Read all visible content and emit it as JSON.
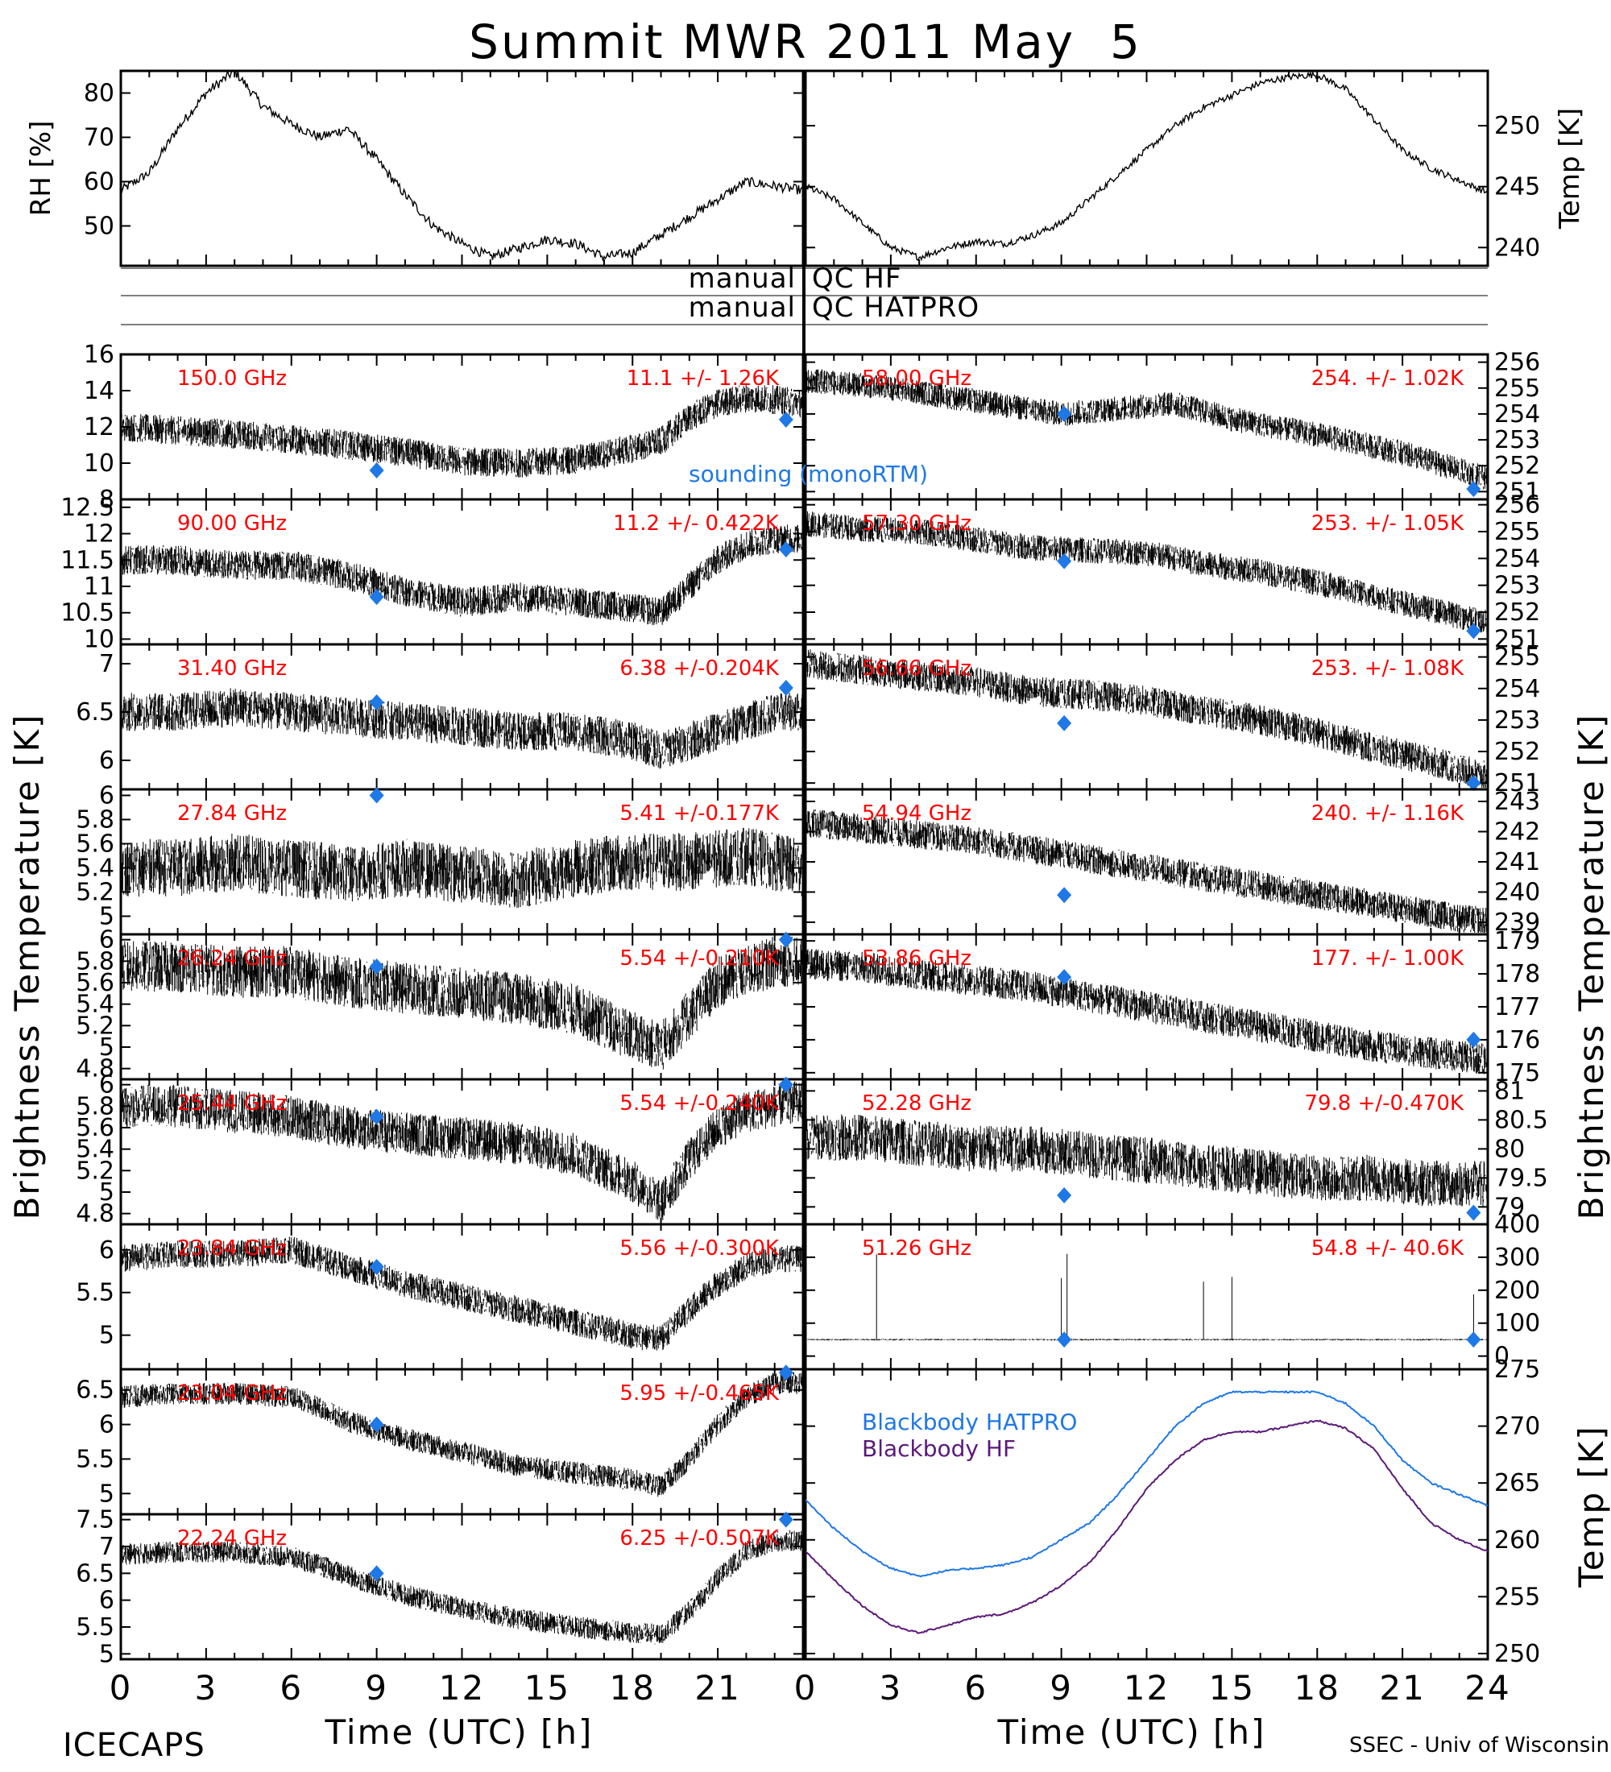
{
  "figure": {
    "title": "Summit MWR 2011 May  5",
    "footer_left": "ICECAPS",
    "footer_right": "SSEC - Univ of Wisconsin",
    "left_ylabel": "Brightness Temperature [K]",
    "right_ylabel": "Brightness Temperature [K]",
    "xlabel_left": "Time (UTC) [h]",
    "xlabel_right": "Time (UTC) [h]",
    "qc_rows": [
      {
        "left": "manual",
        "right": "QC HF"
      },
      {
        "left": "manual",
        "right": "QC HATPRO"
      }
    ],
    "sounding_label": "sounding (monoRTM)",
    "blackbody_labels": [
      "Blackbody HATPRO",
      "Blackbody HF"
    ],
    "colors": {
      "sounding": "#1e78e6",
      "blackbody_hatpro": "#1e78e6",
      "blackbody_hf": "#5a1a7a",
      "stat_text": "#ff0000"
    }
  },
  "chart_data": [
    {
      "type": "line",
      "id": "rh",
      "ylabel": "RH [%]",
      "x_range": [
        0,
        24
      ],
      "ylim": [
        41,
        85
      ],
      "yticks": [
        50,
        60,
        70,
        80
      ],
      "x": [
        0,
        1,
        2,
        3,
        4,
        5,
        6,
        7,
        8,
        9,
        10,
        11,
        12,
        13,
        14,
        15,
        16,
        17,
        18,
        19,
        20,
        21,
        22,
        23,
        24
      ],
      "y": [
        58,
        62,
        72,
        80,
        85,
        77,
        73,
        70,
        72,
        65,
        57,
        50,
        46,
        43,
        45,
        47,
        46,
        43,
        44,
        48,
        52,
        56,
        60,
        59,
        58
      ]
    },
    {
      "type": "line",
      "id": "temp",
      "ylabel": "Temp [K]",
      "x_range": [
        0,
        24
      ],
      "ylim": [
        238.5,
        254.5
      ],
      "yticks": [
        240,
        245,
        250
      ],
      "x": [
        0,
        1,
        2,
        3,
        4,
        5,
        6,
        7,
        8,
        9,
        10,
        11,
        12,
        13,
        14,
        15,
        16,
        17,
        18,
        19,
        20,
        21,
        22,
        23,
        24
      ],
      "y": [
        245,
        244,
        242,
        240,
        239.2,
        240,
        240.5,
        240.3,
        241,
        242,
        244,
        246,
        248,
        250,
        251.5,
        252.5,
        253.5,
        254,
        254.2,
        253,
        250.5,
        248,
        246.5,
        245.5,
        244.5
      ]
    },
    {
      "type": "scatter",
      "column": "left",
      "channel": "150.0 GHz",
      "stat": "11.1 +/-  1.26K",
      "ylim": [
        8,
        16
      ],
      "yticks": [
        8,
        10,
        12,
        14,
        16
      ],
      "x": [
        0,
        2,
        4,
        6,
        8,
        10,
        12,
        14,
        16,
        18,
        19,
        20,
        21,
        22,
        23,
        24
      ],
      "y": [
        12,
        11.8,
        11.6,
        11.3,
        11,
        10.6,
        10.1,
        10,
        10.2,
        10.8,
        11.2,
        12.5,
        13.3,
        13.6,
        13.5,
        13.3
      ],
      "noise": 1.0,
      "sounding": [
        [
          9,
          9.6
        ],
        [
          23.4,
          12.4
        ]
      ]
    },
    {
      "type": "scatter",
      "column": "left",
      "channel": "90.00 GHz",
      "stat": "11.2 +/- 0.422K",
      "ylim": [
        9.9,
        12.65
      ],
      "yticks": [
        10.0,
        10.5,
        11.0,
        11.5,
        12.0,
        12.5
      ],
      "x": [
        0,
        2,
        4,
        6,
        8,
        10,
        12,
        14,
        16,
        18,
        19,
        20,
        21,
        22,
        23,
        24
      ],
      "y": [
        11.5,
        11.5,
        11.4,
        11.4,
        11.2,
        10.9,
        10.7,
        10.8,
        10.7,
        10.6,
        10.5,
        11,
        11.5,
        11.8,
        11.9,
        11.9
      ],
      "noise": 0.35,
      "sounding": [
        [
          9,
          10.8
        ],
        [
          23.4,
          11.7
        ]
      ]
    },
    {
      "type": "scatter",
      "column": "left",
      "channel": "31.40 GHz",
      "stat": "6.38 +/-0.204K",
      "ylim": [
        5.7,
        7.2
      ],
      "yticks": [
        6.0,
        6.5,
        7.0
      ],
      "x": [
        0,
        2,
        4,
        6,
        8,
        10,
        12,
        14,
        16,
        18,
        19,
        20,
        21,
        22,
        23,
        24
      ],
      "y": [
        6.5,
        6.5,
        6.55,
        6.5,
        6.45,
        6.4,
        6.35,
        6.3,
        6.3,
        6.2,
        6.1,
        6.2,
        6.3,
        6.4,
        6.5,
        6.5
      ],
      "noise": 0.25,
      "sounding": [
        [
          9,
          6.6
        ],
        [
          23.4,
          6.75
        ]
      ]
    },
    {
      "type": "scatter",
      "column": "left",
      "channel": "27.84 GHz",
      "stat": "5.41 +/-0.177K",
      "ylim": [
        4.85,
        6.05
      ],
      "yticks": [
        5.0,
        5.2,
        5.4,
        5.6,
        5.8,
        6.0
      ],
      "x": [
        0,
        2,
        4,
        6,
        8,
        10,
        12,
        14,
        16,
        18,
        20,
        22,
        24
      ],
      "y": [
        5.4,
        5.4,
        5.45,
        5.4,
        5.35,
        5.4,
        5.35,
        5.3,
        5.4,
        5.45,
        5.45,
        5.5,
        5.4
      ],
      "noise": 0.3,
      "sounding": [
        [
          9,
          6.0
        ]
      ]
    },
    {
      "type": "scatter",
      "column": "left",
      "channel": "26.24 GHz",
      "stat": "5.54 +/-0.210K",
      "ylim": [
        4.7,
        6.05
      ],
      "yticks": [
        4.8,
        5.0,
        5.2,
        5.4,
        5.6,
        5.8,
        6.0
      ],
      "x": [
        0,
        2,
        4,
        6,
        8,
        10,
        12,
        14,
        16,
        18,
        19,
        20,
        21,
        22,
        23,
        24
      ],
      "y": [
        5.75,
        5.75,
        5.7,
        5.7,
        5.6,
        5.55,
        5.5,
        5.45,
        5.35,
        5.1,
        5.0,
        5.3,
        5.6,
        5.7,
        5.8,
        5.8
      ],
      "noise": 0.3,
      "sounding": [
        [
          9,
          5.75
        ],
        [
          23.4,
          6.0
        ]
      ]
    },
    {
      "type": "scatter",
      "column": "left",
      "channel": "25.44 GHz",
      "stat": "5.54 +/-0.240K",
      "ylim": [
        4.7,
        6.05
      ],
      "yticks": [
        4.8,
        5.0,
        5.2,
        5.4,
        5.6,
        5.8,
        6.0
      ],
      "x": [
        0,
        2,
        4,
        6,
        8,
        10,
        12,
        14,
        16,
        18,
        19,
        20,
        21,
        22,
        23,
        24
      ],
      "y": [
        5.8,
        5.8,
        5.75,
        5.7,
        5.6,
        5.55,
        5.5,
        5.45,
        5.35,
        5.1,
        4.9,
        5.3,
        5.6,
        5.75,
        5.8,
        5.85
      ],
      "noise": 0.25,
      "sounding": [
        [
          9,
          5.7
        ],
        [
          23.4,
          6.0
        ]
      ]
    },
    {
      "type": "scatter",
      "column": "left",
      "channel": "23.84 GHz",
      "stat": "5.56 +/-0.300K",
      "ylim": [
        4.6,
        6.3
      ],
      "yticks": [
        5.0,
        5.5,
        6.0
      ],
      "x": [
        0,
        2,
        4,
        6,
        7,
        8,
        10,
        12,
        14,
        16,
        18,
        19,
        20,
        21,
        22,
        23,
        24
      ],
      "y": [
        5.9,
        5.95,
        5.95,
        6.0,
        5.9,
        5.8,
        5.6,
        5.45,
        5.3,
        5.15,
        5.0,
        4.95,
        5.3,
        5.6,
        5.8,
        5.9,
        5.9
      ],
      "noise": 0.2,
      "sounding": [
        [
          9,
          5.8
        ]
      ]
    },
    {
      "type": "scatter",
      "column": "left",
      "channel": "23.04 GHz",
      "stat": "5.95 +/-0.465K",
      "ylim": [
        4.7,
        6.8
      ],
      "yticks": [
        5.0,
        5.5,
        6.0,
        6.5
      ],
      "x": [
        0,
        2,
        4,
        6,
        7,
        8,
        10,
        12,
        14,
        16,
        18,
        19,
        20,
        21,
        22,
        23,
        24
      ],
      "y": [
        6.4,
        6.45,
        6.45,
        6.4,
        6.25,
        6.05,
        5.8,
        5.6,
        5.4,
        5.3,
        5.2,
        5.1,
        5.5,
        6.0,
        6.4,
        6.6,
        6.6
      ],
      "noise": 0.2,
      "sounding": [
        [
          9,
          6.0
        ],
        [
          23.4,
          6.75
        ]
      ]
    },
    {
      "type": "scatter",
      "column": "left",
      "channel": "22.24 GHz",
      "stat": "6.25 +/-0.507K",
      "ylim": [
        4.9,
        7.6
      ],
      "yticks": [
        5.0,
        5.5,
        6.0,
        6.5,
        7.0,
        7.5
      ],
      "x": [
        0,
        2,
        4,
        6,
        7,
        8,
        10,
        12,
        14,
        16,
        18,
        19,
        20,
        21,
        22,
        23,
        24
      ],
      "y": [
        6.85,
        6.9,
        6.9,
        6.8,
        6.65,
        6.45,
        6.1,
        5.85,
        5.65,
        5.5,
        5.4,
        5.35,
        5.8,
        6.4,
        6.9,
        7.1,
        7.1
      ],
      "noise": 0.25,
      "sounding": [
        [
          9,
          6.5
        ],
        [
          23.4,
          7.5
        ]
      ]
    },
    {
      "type": "scatter",
      "column": "right",
      "channel": "58.00 GHz",
      "stat": "254. +/- 1.02K",
      "ylim": [
        250.7,
        256.3
      ],
      "yticks": [
        251,
        252,
        253,
        254,
        255,
        256
      ],
      "x": [
        0,
        1,
        3,
        6,
        9,
        11,
        13,
        15,
        18,
        21,
        24
      ],
      "y": [
        255.3,
        255.2,
        255,
        254.5,
        254,
        254.2,
        254.4,
        253.8,
        253.2,
        252.5,
        251.5
      ],
      "noise": 0.6,
      "sounding": [
        [
          9.1,
          254.0
        ],
        [
          23.5,
          251.1
        ]
      ]
    },
    {
      "type": "scatter",
      "column": "right",
      "channel": "57.30 GHz",
      "stat": "253. +/- 1.05K",
      "ylim": [
        250.8,
        256.2
      ],
      "yticks": [
        251,
        252,
        253,
        254,
        255,
        256
      ],
      "x": [
        0,
        2,
        4,
        6,
        8,
        10,
        12,
        14,
        16,
        18,
        20,
        22,
        24
      ],
      "y": [
        255.3,
        255.1,
        255,
        254.7,
        254.4,
        254.3,
        254.2,
        253.8,
        253.5,
        253.1,
        252.6,
        252.1,
        251.6
      ],
      "noise": 0.6,
      "sounding": [
        [
          9.1,
          253.9
        ],
        [
          23.5,
          251.3
        ]
      ]
    },
    {
      "type": "scatter",
      "column": "right",
      "channel": "56.66 GHz",
      "stat": "253. +/- 1.08K",
      "ylim": [
        250.8,
        255.4
      ],
      "yticks": [
        251,
        252,
        253,
        254,
        255
      ],
      "x": [
        0,
        2,
        4,
        6,
        8,
        10,
        12,
        14,
        16,
        18,
        20,
        22,
        24
      ],
      "y": [
        254.8,
        254.6,
        254.4,
        254.2,
        253.9,
        253.8,
        253.6,
        253.3,
        253.0,
        252.6,
        252.1,
        251.7,
        251.2
      ],
      "noise": 0.6,
      "sounding": [
        [
          9.1,
          252.9
        ],
        [
          23.5,
          251.0
        ]
      ]
    },
    {
      "type": "scatter",
      "column": "right",
      "channel": "54.94 GHz",
      "stat": "240. +/- 1.16K",
      "ylim": [
        238.6,
        243.4
      ],
      "yticks": [
        239,
        240,
        241,
        242,
        243
      ],
      "x": [
        0,
        2,
        4,
        6,
        8,
        10,
        12,
        14,
        16,
        18,
        20,
        22,
        24
      ],
      "y": [
        242.3,
        242.1,
        241.9,
        241.7,
        241.4,
        241.1,
        240.8,
        240.5,
        240.2,
        239.9,
        239.6,
        239.3,
        239.0
      ],
      "noise": 0.6,
      "sounding": [
        [
          9.1,
          239.9
        ]
      ]
    },
    {
      "type": "scatter",
      "column": "right",
      "channel": "53.86 GHz",
      "stat": "177. +/- 1.00K",
      "ylim": [
        174.8,
        179.2
      ],
      "yticks": [
        175,
        176,
        177,
        178,
        179
      ],
      "x": [
        0,
        2,
        4,
        6,
        8,
        10,
        12,
        14,
        16,
        18,
        20,
        22,
        24
      ],
      "y": [
        178.3,
        178.2,
        178.0,
        177.8,
        177.6,
        177.3,
        177.0,
        176.7,
        176.4,
        176.1,
        175.8,
        175.6,
        175.4
      ],
      "noise": 0.6,
      "sounding": [
        [
          9.1,
          177.9
        ],
        [
          23.5,
          176.0
        ]
      ]
    },
    {
      "type": "scatter",
      "column": "right",
      "channel": "52.28 GHz",
      "stat": "79.8 +/-0.470K",
      "ylim": [
        78.7,
        81.2
      ],
      "yticks": [
        79.0,
        79.5,
        80.0,
        80.5,
        81.0
      ],
      "x": [
        0,
        2,
        4,
        6,
        8,
        10,
        12,
        14,
        16,
        18,
        20,
        22,
        24
      ],
      "y": [
        80.2,
        80.2,
        80.1,
        80.0,
        80.0,
        79.9,
        79.8,
        79.7,
        79.6,
        79.5,
        79.5,
        79.4,
        79.4
      ],
      "noise": 0.5,
      "sounding": [
        [
          9.1,
          79.2
        ],
        [
          23.5,
          78.9
        ]
      ]
    },
    {
      "type": "scatter",
      "column": "right",
      "channel": "51.26 GHz",
      "stat": "54.8 +/- 40.6K",
      "ylim": [
        -40,
        400
      ],
      "yticks": [
        0,
        100,
        200,
        300,
        400
      ],
      "x": [
        0,
        24
      ],
      "y": [
        50,
        50
      ],
      "noise": 3,
      "spikes": [
        9.0,
        9.2,
        14.0,
        15.0,
        2.5,
        23.5
      ],
      "sounding": [
        [
          9.1,
          50
        ],
        [
          23.5,
          50
        ]
      ]
    },
    {
      "type": "line",
      "column": "right",
      "id": "blackbody",
      "ylabel": "Temp [K]",
      "ylim": [
        249.5,
        275
      ],
      "yticks": [
        250,
        255,
        260,
        265,
        270,
        275
      ],
      "x": [
        0,
        1,
        2,
        3,
        4,
        5,
        6,
        7,
        8,
        9,
        10,
        11,
        12,
        13,
        14,
        15,
        16,
        17,
        18,
        19,
        20,
        21,
        22,
        23,
        24
      ],
      "series": [
        {
          "name": "Blackbody HATPRO",
          "values": [
            263.5,
            261,
            259,
            257.5,
            256.8,
            257.3,
            257.5,
            257.8,
            258.5,
            260,
            261.5,
            264,
            267,
            270,
            272,
            273,
            273,
            273,
            273,
            272,
            270,
            267,
            265,
            264,
            263
          ]
        },
        {
          "name": "Blackbody HF",
          "values": [
            259,
            256.5,
            254.2,
            252.5,
            251.8,
            252.5,
            253.2,
            253.5,
            254.5,
            256,
            258,
            261,
            264.5,
            267,
            268.8,
            269.5,
            269.5,
            270,
            270.5,
            269.8,
            268,
            264.5,
            261.5,
            260,
            259
          ]
        }
      ]
    }
  ],
  "x_axis": {
    "range": [
      0,
      24
    ],
    "ticks": [
      0,
      3,
      6,
      9,
      12,
      15,
      18,
      21,
      24
    ],
    "left_ticks": [
      0,
      3,
      6,
      9,
      12,
      15,
      18,
      21
    ],
    "right_ticks": [
      0,
      3,
      6,
      9,
      12,
      15,
      18,
      21,
      24
    ]
  }
}
